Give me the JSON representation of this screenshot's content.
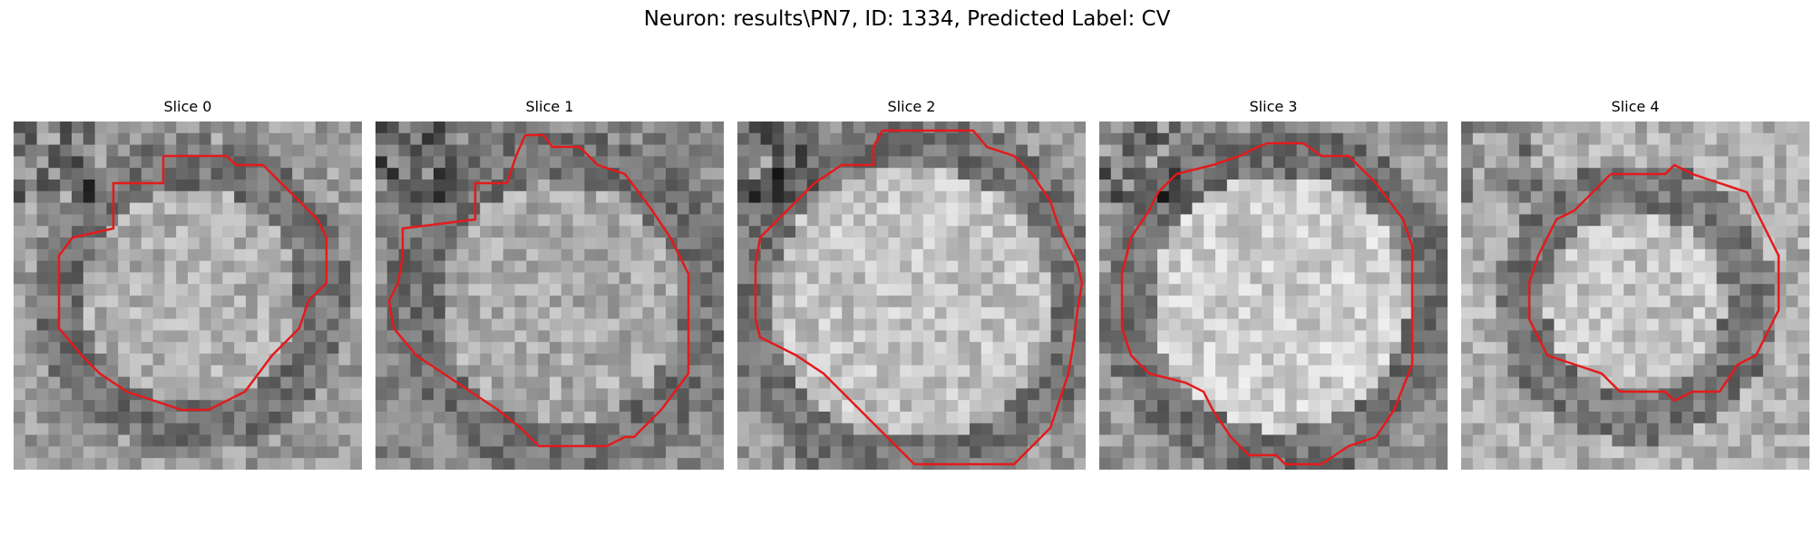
{
  "figure": {
    "title": "Neuron: results\\PN7, ID: 1334, Predicted Label: CV"
  },
  "panels": [
    {
      "title": "Slice 0",
      "image": "grayscale-em-slice-with-red-contour"
    },
    {
      "title": "Slice 1",
      "image": "grayscale-em-slice-with-red-contour"
    },
    {
      "title": "Slice 2",
      "image": "grayscale-em-slice-with-red-contour"
    },
    {
      "title": "Slice 3",
      "image": "grayscale-em-slice-with-red-contour"
    },
    {
      "title": "Slice 4",
      "image": "grayscale-em-slice-with-red-contour"
    }
  ],
  "colors": {
    "contour": "#e41a1c",
    "background": "#ffffff"
  }
}
